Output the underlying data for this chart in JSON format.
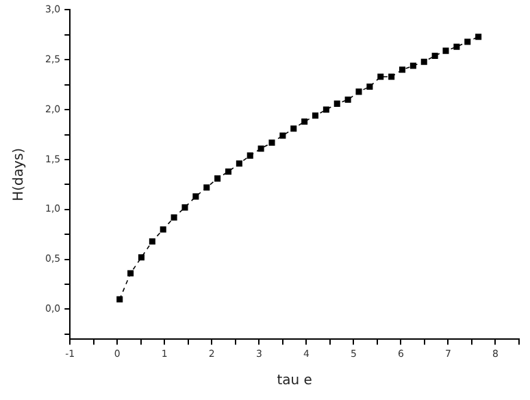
{
  "chart_data": {
    "type": "line",
    "xlabel": "tau e",
    "ylabel": "H(days)",
    "x": [
      0.05,
      0.28,
      0.51,
      0.74,
      0.97,
      1.2,
      1.43,
      1.66,
      1.89,
      2.12,
      2.35,
      2.58,
      2.81,
      3.04,
      3.27,
      3.5,
      3.73,
      3.96,
      4.19,
      4.42,
      4.65,
      4.88,
      5.11,
      5.34,
      5.57,
      5.8,
      6.03,
      6.26,
      6.49,
      6.72,
      6.95,
      7.18,
      7.41,
      7.64
    ],
    "series": [
      {
        "color": "#000000",
        "values": [
          0.1,
          0.36,
          0.52,
          0.68,
          0.8,
          0.92,
          1.02,
          1.13,
          1.22,
          1.31,
          1.38,
          1.46,
          1.54,
          1.61,
          1.67,
          1.74,
          1.81,
          1.88,
          1.94,
          2.0,
          2.06,
          2.1,
          2.18,
          2.23,
          2.33,
          2.33,
          2.4,
          2.44,
          2.48,
          2.54,
          2.59,
          2.63,
          2.68,
          2.73
        ]
      }
    ],
    "xlim": [
      -1,
      8.5
    ],
    "xticks": [
      -1,
      {
        "value": -0.5,
        "label": null
      },
      0,
      {
        "value": 0.5,
        "label": null
      },
      1,
      {
        "value": 1.5,
        "label": null
      },
      2,
      {
        "value": 2.5,
        "label": null
      },
      3,
      {
        "value": 3.5,
        "label": null
      },
      4,
      {
        "value": 4.5,
        "label": null
      },
      5,
      {
        "value": 5.5,
        "label": null
      },
      6,
      {
        "value": 6.5,
        "label": null
      },
      7,
      {
        "value": 7.5,
        "label": null
      },
      8,
      {
        "value": 8.5,
        "label": null
      }
    ],
    "ylim": [
      -0.3,
      3.0
    ],
    "yticks": [
      {
        "value": -0.25,
        "label": null
      },
      {
        "value": 0,
        "label": "0,0"
      },
      {
        "value": 0.25,
        "label": null
      },
      {
        "value": 0.5,
        "label": "0,5"
      },
      {
        "value": 0.75,
        "label": null
      },
      {
        "value": 1,
        "label": "1,0"
      },
      {
        "value": 1.25,
        "label": null
      },
      {
        "value": 1.5,
        "label": "1,5"
      },
      {
        "value": 1.75,
        "label": null
      },
      {
        "value": 2,
        "label": "2,0"
      },
      {
        "value": 2.25,
        "label": null
      },
      {
        "value": 2.5,
        "label": "2,5"
      },
      {
        "value": 2.75,
        "label": null
      },
      {
        "value": 3,
        "label": "3,0"
      }
    ],
    "grid": false,
    "legend": false,
    "marker": "square",
    "line_style": "dashed"
  }
}
